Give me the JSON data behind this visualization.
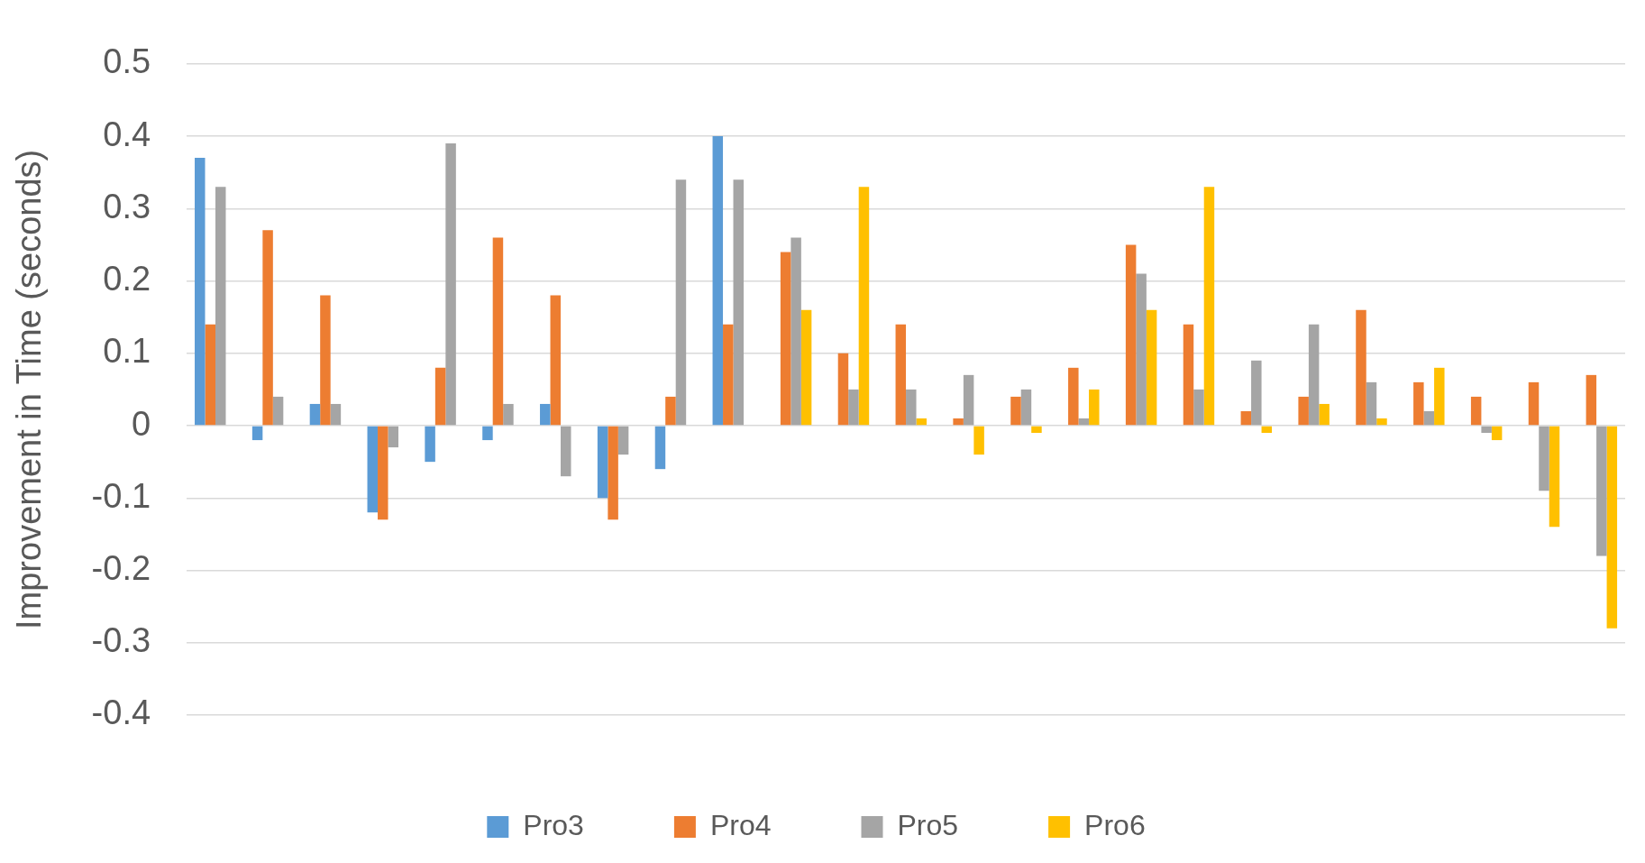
{
  "chart_data": {
    "type": "bar",
    "ylabel": "Improvement in Time (seconds)",
    "categories": [
      null,
      null,
      null,
      null,
      null,
      null,
      null,
      null,
      null,
      null,
      null,
      null,
      null,
      null,
      null,
      null,
      null,
      null,
      null,
      null,
      null,
      null,
      null,
      null,
      null
    ],
    "series": [
      {
        "name": "Pro3",
        "color": "#5b9bd5",
        "values": [
          0.37,
          -0.02,
          0.03,
          -0.12,
          -0.05,
          -0.02,
          0.03,
          -0.1,
          -0.06,
          0.4,
          null,
          null,
          null,
          null,
          null,
          null,
          null,
          null,
          null,
          null,
          null,
          null,
          null,
          null,
          null
        ]
      },
      {
        "name": "Pro4",
        "color": "#ed7d31",
        "values": [
          0.14,
          0.27,
          0.18,
          -0.13,
          0.08,
          0.26,
          0.18,
          -0.13,
          0.04,
          0.14,
          0.24,
          0.1,
          0.14,
          0.01,
          0.04,
          0.08,
          0.25,
          0.14,
          0.02,
          0.04,
          0.16,
          0.06,
          0.04,
          0.06,
          0.07
        ]
      },
      {
        "name": "Pro5",
        "color": "#a5a5a5",
        "values": [
          0.33,
          0.04,
          0.03,
          -0.03,
          0.39,
          0.03,
          -0.07,
          -0.04,
          0.34,
          0.34,
          0.26,
          0.05,
          0.05,
          0.07,
          0.05,
          0.01,
          0.21,
          0.05,
          0.09,
          0.14,
          0.06,
          0.02,
          -0.01,
          -0.09,
          -0.18
        ]
      },
      {
        "name": "Pro6",
        "color": "#ffc000",
        "values": [
          null,
          null,
          null,
          null,
          null,
          null,
          null,
          null,
          null,
          null,
          0.16,
          0.33,
          0.01,
          -0.04,
          -0.01,
          0.05,
          0.16,
          0.33,
          -0.01,
          0.03,
          0.01,
          0.08,
          -0.02,
          -0.14,
          -0.28
        ]
      }
    ],
    "ylim": [
      -0.4,
      0.5
    ],
    "yticks": [
      -0.4,
      -0.3,
      -0.2,
      -0.1,
      0,
      0.1,
      0.2,
      0.3,
      0.4,
      0.5
    ],
    "grid": "y",
    "legend": "bottom",
    "tick_labels": "y"
  }
}
